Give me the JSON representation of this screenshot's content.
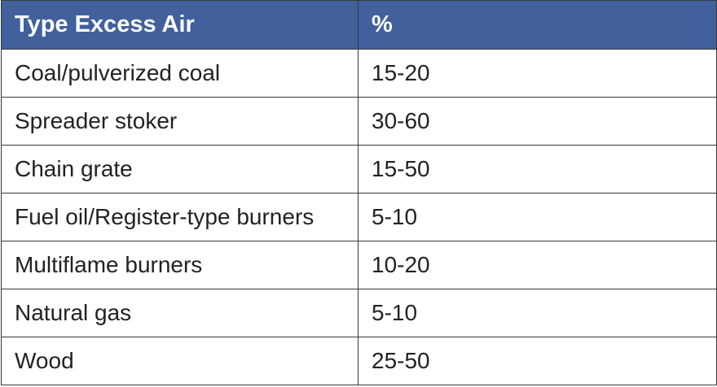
{
  "table": {
    "header": [
      "Type Excess Air",
      "%"
    ],
    "rows": [
      [
        "Coal/pulverized coal",
        "15-20"
      ],
      [
        "Spreader stoker",
        "30-60"
      ],
      [
        "Chain grate",
        "15-50"
      ],
      [
        "Fuel oil/Register-type burners",
        "5-10"
      ],
      [
        "Multiflame burners",
        "10-20"
      ],
      [
        "Natural gas",
        "5-10"
      ],
      [
        "Wood",
        "25-50"
      ]
    ]
  }
}
